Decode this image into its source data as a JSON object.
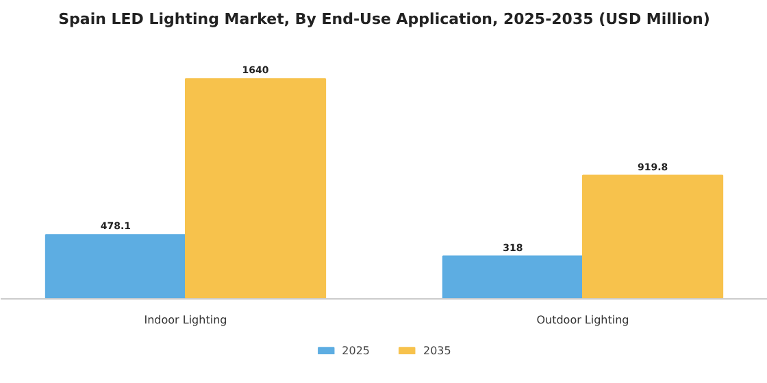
{
  "chart_data": {
    "type": "bar",
    "title": "Spain LED Lighting Market, By End-Use Application, 2025-2035 (USD Million)",
    "categories": [
      "Indoor Lighting",
      "Outdoor Lighting"
    ],
    "series": [
      {
        "name": "2025",
        "color": "#5dade2",
        "values": [
          478.1,
          318
        ]
      },
      {
        "name": "2035",
        "color": "#f7c24c",
        "values": [
          1640,
          919.8
        ]
      }
    ],
    "data_labels": true,
    "legend": "bottom"
  }
}
